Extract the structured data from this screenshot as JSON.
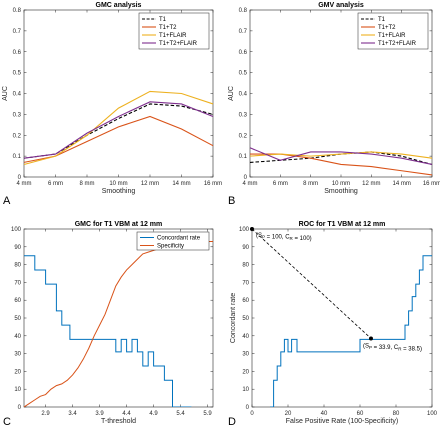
{
  "panel_letters": [
    "A",
    "B",
    "C",
    "D"
  ],
  "colors": {
    "T1": "#000000",
    "T1+T2": "#d95319",
    "T1+FLAIR": "#edb120",
    "T1+T2+FLAIR": "#7e2f8e",
    "concordant": "#0072bd",
    "specificity": "#d95319",
    "roc_line": "#0072bd"
  },
  "chart_data": [
    {
      "id": "A",
      "type": "line",
      "title": "GMC analysis",
      "xlabel": "Smoothing",
      "ylabel": "AUC",
      "categories": [
        "4 mm",
        "6 mm",
        "8 mm",
        "10 mm",
        "12 mm",
        "14 mm",
        "16 mm"
      ],
      "ylim": [
        0,
        0.8
      ],
      "yticks": [
        0,
        0.1,
        0.2,
        0.3,
        0.4,
        0.5,
        0.6,
        0.7,
        0.8
      ],
      "ytick_labels": [
        "0",
        "0.1",
        "0.2",
        "0.3",
        "0.4",
        "0.5",
        "0.6",
        "0.7",
        "0.8"
      ],
      "legend_position": "top-right",
      "series": [
        {
          "name": "T1",
          "style": "dashed",
          "values": [
            0.09,
            0.11,
            0.2,
            0.28,
            0.35,
            0.34,
            0.3
          ]
        },
        {
          "name": "T1+T2",
          "style": "solid",
          "values": [
            0.07,
            0.1,
            0.17,
            0.24,
            0.29,
            0.23,
            0.15
          ]
        },
        {
          "name": "T1+FLAIR",
          "style": "solid",
          "values": [
            0.06,
            0.1,
            0.2,
            0.33,
            0.41,
            0.4,
            0.35
          ]
        },
        {
          "name": "T1+T2+FLAIR",
          "style": "solid",
          "values": [
            0.09,
            0.11,
            0.21,
            0.29,
            0.36,
            0.35,
            0.29
          ]
        }
      ]
    },
    {
      "id": "B",
      "type": "line",
      "title": "GMV analysis",
      "xlabel": "Smoothing",
      "ylabel": "AUC",
      "categories": [
        "4 mm",
        "6 mm",
        "8 mm",
        "10 mm",
        "12 mm",
        "14 mm",
        "16 mm"
      ],
      "ylim": [
        0,
        0.8
      ],
      "yticks": [
        0,
        0.1,
        0.2,
        0.3,
        0.4,
        0.5,
        0.6,
        0.7,
        0.8
      ],
      "ytick_labels": [
        "0",
        "0.1",
        "0.2",
        "0.3",
        "0.4",
        "0.5",
        "0.6",
        "0.7",
        "0.8"
      ],
      "legend_position": "top-right",
      "series": [
        {
          "name": "T1",
          "style": "dashed",
          "values": [
            0.07,
            0.08,
            0.09,
            0.11,
            0.12,
            0.1,
            0.06
          ]
        },
        {
          "name": "T1+T2",
          "style": "solid",
          "values": [
            0.11,
            0.11,
            0.09,
            0.06,
            0.05,
            0.03,
            0.01
          ]
        },
        {
          "name": "T1+FLAIR",
          "style": "solid",
          "values": [
            0.1,
            0.11,
            0.1,
            0.11,
            0.12,
            0.11,
            0.09
          ]
        },
        {
          "name": "T1+T2+FLAIR",
          "style": "solid",
          "values": [
            0.14,
            0.08,
            0.12,
            0.12,
            0.11,
            0.09,
            0.06
          ]
        }
      ]
    },
    {
      "id": "C",
      "type": "line",
      "title": "GMC for T1 VBM at 12 mm",
      "xlabel": "T-threshold",
      "ylabel": "",
      "xlim": [
        2.5,
        6.0
      ],
      "xticks": [
        2.9,
        3.4,
        3.9,
        4.4,
        4.9,
        5.4,
        5.9
      ],
      "xtick_labels": [
        "2.9",
        "3.4",
        "3.9",
        "4.4",
        "4.9",
        "5.4",
        "5.9"
      ],
      "ylim": [
        0,
        100
      ],
      "yticks": [
        0,
        10,
        20,
        30,
        40,
        50,
        60,
        70,
        80,
        90,
        100
      ],
      "ytick_labels": [
        "0",
        "10",
        "20",
        "30",
        "40",
        "50",
        "60",
        "70",
        "80",
        "90",
        "100"
      ],
      "legend_position": "top-right",
      "series": [
        {
          "name": "Concordant rate",
          "style": "step",
          "x": [
            2.5,
            2.7,
            2.7,
            2.9,
            2.9,
            3.1,
            3.1,
            3.2,
            3.2,
            3.35,
            3.35,
            4.2,
            4.2,
            4.3,
            4.3,
            4.4,
            4.4,
            4.5,
            4.5,
            4.6,
            4.6,
            4.7,
            4.7,
            4.8,
            4.8,
            4.9,
            4.9,
            5.1,
            5.1,
            5.25,
            5.25,
            5.6
          ],
          "y": [
            85,
            85,
            77,
            77,
            69,
            69,
            54,
            54,
            46,
            46,
            38,
            38,
            31,
            31,
            38,
            38,
            31,
            31,
            38,
            38,
            31,
            31,
            23,
            23,
            31,
            31,
            23,
            23,
            15,
            15,
            0,
            0
          ]
        },
        {
          "name": "Specificity",
          "style": "solid",
          "x": [
            2.5,
            2.6,
            2.7,
            2.8,
            2.9,
            3.0,
            3.1,
            3.2,
            3.3,
            3.4,
            3.5,
            3.6,
            3.7,
            3.8,
            3.9,
            4.0,
            4.1,
            4.2,
            4.3,
            4.4,
            4.5,
            4.6,
            4.7,
            4.8,
            4.9,
            5.0,
            5.2,
            5.4,
            5.6,
            5.8,
            6.0
          ],
          "y": [
            0,
            2,
            4,
            6,
            7,
            10,
            12,
            13,
            15,
            18,
            22,
            27,
            33,
            40,
            46,
            52,
            60,
            68,
            73,
            77,
            80,
            83,
            86,
            87,
            88,
            89,
            90,
            91,
            92,
            93,
            93
          ]
        }
      ]
    },
    {
      "id": "D",
      "type": "line",
      "title": "ROC for T1 VBM at 12 mm",
      "xlabel": "False Positive Rate (100-Specificity)",
      "ylabel": "Concordant rate",
      "xlim": [
        0,
        100
      ],
      "xticks": [
        0,
        20,
        40,
        60,
        80,
        100
      ],
      "xtick_labels": [
        "0",
        "20",
        "40",
        "60",
        "80",
        "100"
      ],
      "ylim": [
        0,
        100
      ],
      "yticks": [
        0,
        10,
        20,
        30,
        40,
        50,
        60,
        70,
        80,
        90,
        100
      ],
      "ytick_labels": [
        "0",
        "10",
        "20",
        "30",
        "40",
        "50",
        "60",
        "70",
        "80",
        "90",
        "100"
      ],
      "series": [
        {
          "name": "",
          "style": "step",
          "x": [
            10,
            12,
            12,
            14,
            14,
            16,
            16,
            18,
            18,
            20,
            20,
            22,
            22,
            25,
            25,
            27,
            27,
            40,
            40,
            60,
            60,
            66,
            66,
            85,
            85,
            87,
            87,
            89,
            89,
            91,
            91,
            93,
            93,
            95,
            95,
            97,
            97,
            100
          ],
          "y": [
            0,
            0,
            15,
            15,
            23,
            23,
            31,
            31,
            38,
            38,
            31,
            31,
            38,
            38,
            31,
            31,
            31,
            31,
            31,
            31,
            38,
            38,
            38,
            38,
            46,
            46,
            54,
            54,
            62,
            62,
            69,
            69,
            77,
            77,
            85,
            85,
            85,
            85
          ]
        }
      ],
      "annotations": [
        {
          "x": 0,
          "y": 100,
          "sp": "100",
          "cr": "100"
        },
        {
          "x": 66.1,
          "y": 38.5,
          "sp": "33.9",
          "cr": "38.5"
        }
      ]
    }
  ]
}
